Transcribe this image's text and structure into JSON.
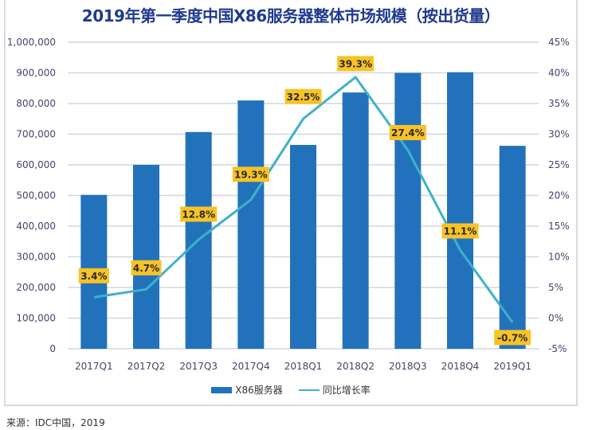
{
  "chart_data": {
    "type": "bar",
    "title": "2019年第一季度中国X86服务器整体市场规模（按出货量）",
    "categories": [
      "2017Q1",
      "2017Q2",
      "2017Q3",
      "2017Q4",
      "2018Q1",
      "2018Q2",
      "2018Q3",
      "2018Q4",
      "2019Q1"
    ],
    "series": [
      {
        "name": "X86服务器",
        "type": "bar",
        "axis": "left",
        "values": [
          502000,
          600000,
          707000,
          810000,
          665000,
          836000,
          900000,
          902000,
          662000
        ]
      },
      {
        "name": "同比增长率",
        "type": "line",
        "axis": "right",
        "values": [
          3.4,
          4.7,
          12.8,
          19.3,
          32.5,
          39.3,
          27.4,
          11.1,
          -0.7
        ],
        "labels": [
          "3.4%",
          "4.7%",
          "12.8%",
          "19.3%",
          "32.5%",
          "39.3%",
          "27.4%",
          "11.1%",
          "-0.7%"
        ]
      }
    ],
    "left_axis": {
      "min": 0,
      "max": 1000000,
      "step": 100000,
      "ticks": [
        "0",
        "100,000",
        "200,000",
        "300,000",
        "400,000",
        "500,000",
        "600,000",
        "700,000",
        "800,000",
        "900,000",
        "1,000,000"
      ]
    },
    "right_axis": {
      "min": -5,
      "max": 45,
      "step": 5,
      "ticks": [
        "-5%",
        "0%",
        "5%",
        "10%",
        "15%",
        "20%",
        "25%",
        "30%",
        "35%",
        "40%",
        "45%"
      ]
    },
    "grid": true,
    "legend": "bottom",
    "xlabel": "",
    "ylabel": ""
  },
  "colors": {
    "bar": "#2272bb",
    "line": "#3fb1c9",
    "label_bg": "#f7c325",
    "title": "#1f3a8f",
    "grid": "#d4d4e6"
  },
  "legend": {
    "bar_label": "X86服务器",
    "line_label": "同比增长率"
  },
  "source": "来源：IDC中国，2019"
}
